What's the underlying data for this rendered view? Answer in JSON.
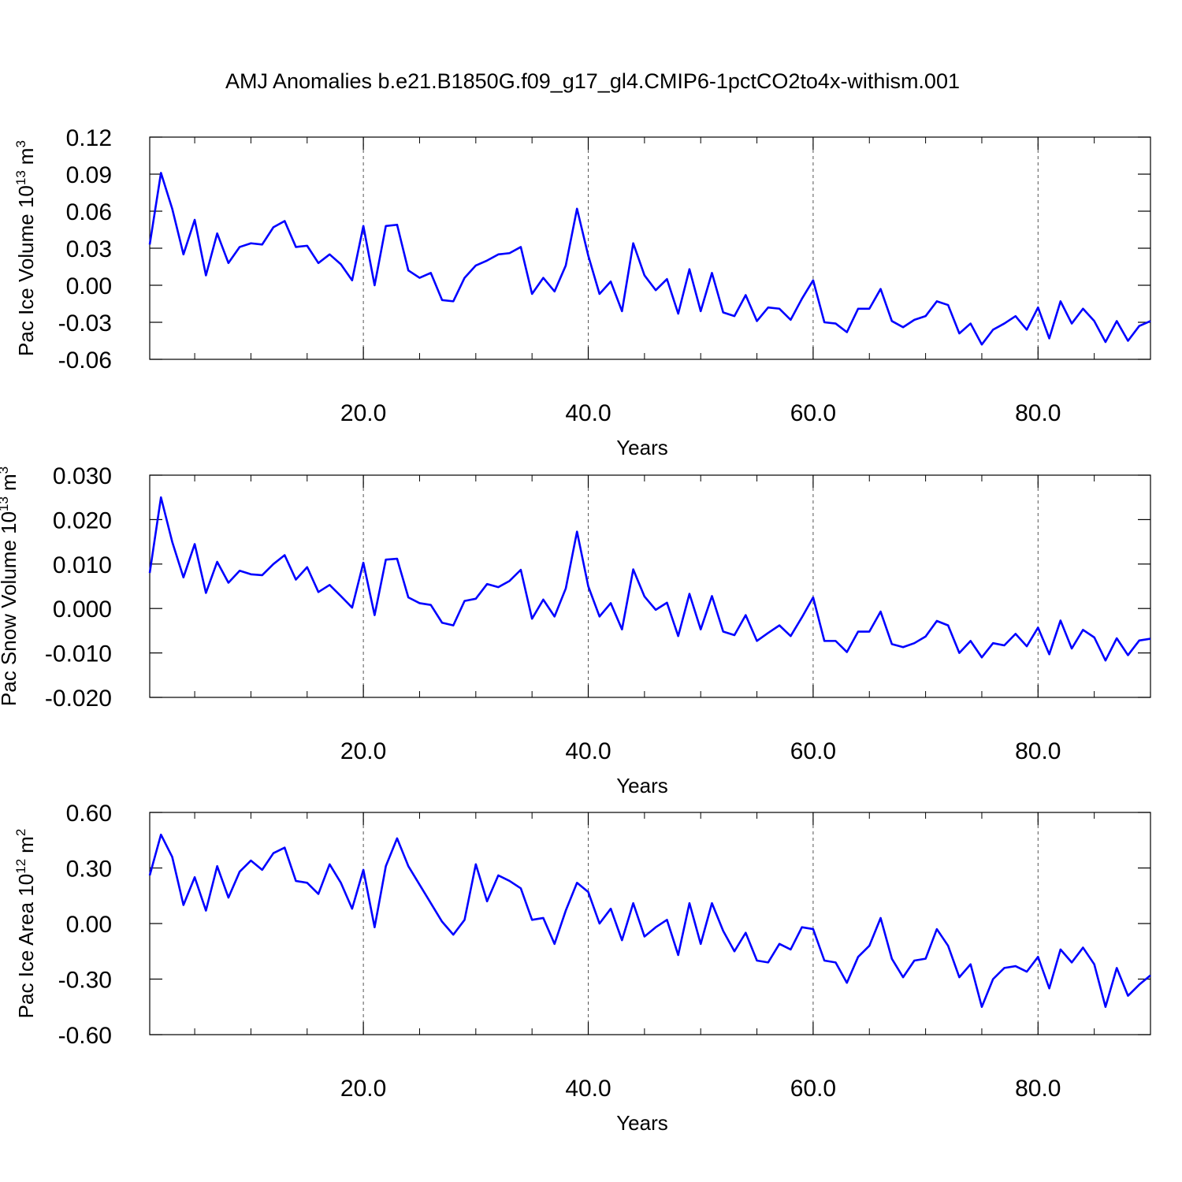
{
  "title": "AMJ Anomalies b.e21.B1850G.f09_g17_gl4.CMIP6-1pctCO2to4x-withism.001",
  "chart_data": [
    {
      "type": "line",
      "xlabel": "Years",
      "ylabel": {
        "text": "Pac Ice Volume 10",
        "exp": "13",
        "unit": "m",
        "unit_exp": "3"
      },
      "x": [
        1,
        2,
        3,
        4,
        5,
        6,
        7,
        8,
        9,
        10,
        11,
        12,
        13,
        14,
        15,
        16,
        17,
        18,
        19,
        20,
        21,
        22,
        23,
        24,
        25,
        26,
        27,
        28,
        29,
        30,
        31,
        32,
        33,
        34,
        35,
        36,
        37,
        38,
        39,
        40,
        41,
        42,
        43,
        44,
        45,
        46,
        47,
        48,
        49,
        50,
        51,
        52,
        53,
        54,
        55,
        56,
        57,
        58,
        59,
        60,
        61,
        62,
        63,
        64,
        65,
        66,
        67,
        68,
        69,
        70,
        71,
        72,
        73,
        74,
        75,
        76,
        77,
        78,
        79,
        80,
        81,
        82,
        83,
        84,
        85,
        86,
        87,
        88,
        89,
        90
      ],
      "series": [
        {
          "color": "#0000ff",
          "values": [
            0.033,
            0.091,
            0.062,
            0.025,
            0.053,
            0.008,
            0.042,
            0.018,
            0.031,
            0.034,
            0.033,
            0.047,
            0.052,
            0.031,
            0.032,
            0.018,
            0.025,
            0.017,
            0.004,
            0.048,
            0.0,
            0.048,
            0.049,
            0.012,
            0.006,
            0.01,
            -0.012,
            -0.013,
            0.006,
            0.016,
            0.02,
            0.025,
            0.026,
            0.031,
            -0.007,
            0.006,
            -0.005,
            0.016,
            0.062,
            0.024,
            -0.007,
            0.003,
            -0.021,
            0.034,
            0.008,
            -0.004,
            0.005,
            -0.023,
            0.013,
            -0.021,
            0.01,
            -0.022,
            -0.025,
            -0.008,
            -0.029,
            -0.018,
            -0.019,
            -0.028,
            -0.011,
            0.004,
            -0.03,
            -0.031,
            -0.038,
            -0.019,
            -0.019,
            -0.003,
            -0.029,
            -0.034,
            -0.028,
            -0.025,
            -0.013,
            -0.016,
            -0.039,
            -0.031,
            -0.048,
            -0.036,
            -0.031,
            -0.025,
            -0.036,
            -0.018,
            -0.043,
            -0.013,
            -0.031,
            -0.019,
            -0.029,
            -0.046,
            -0.029,
            -0.045,
            -0.033,
            -0.029
          ]
        }
      ],
      "xlim": [
        1,
        90
      ],
      "xticks": [
        {
          "value": 20,
          "label": "20.0"
        },
        {
          "value": 40,
          "label": "40.0"
        },
        {
          "value": 60,
          "label": "60.0"
        },
        {
          "value": 80,
          "label": "80.0"
        }
      ],
      "xminorticks": [
        5,
        10,
        15,
        25,
        30,
        35,
        45,
        50,
        55,
        65,
        70,
        75,
        85
      ],
      "ylim": [
        -0.06,
        0.12
      ],
      "yticks": [
        0.12,
        0.09,
        0.06,
        0.03,
        {
          "value": 0,
          "label": "0.00"
        },
        -0.03,
        -0.06
      ],
      "xgrid": true
    },
    {
      "type": "line",
      "xlabel": "Years",
      "ylabel": {
        "text": "Pac Snow Volume 10",
        "exp": "13",
        "unit": "m",
        "unit_exp": "3"
      },
      "x": [
        1,
        2,
        3,
        4,
        5,
        6,
        7,
        8,
        9,
        10,
        11,
        12,
        13,
        14,
        15,
        16,
        17,
        18,
        19,
        20,
        21,
        22,
        23,
        24,
        25,
        26,
        27,
        28,
        29,
        30,
        31,
        32,
        33,
        34,
        35,
        36,
        37,
        38,
        39,
        40,
        41,
        42,
        43,
        44,
        45,
        46,
        47,
        48,
        49,
        50,
        51,
        52,
        53,
        54,
        55,
        56,
        57,
        58,
        59,
        60,
        61,
        62,
        63,
        64,
        65,
        66,
        67,
        68,
        69,
        70,
        71,
        72,
        73,
        74,
        75,
        76,
        77,
        78,
        79,
        80,
        81,
        82,
        83,
        84,
        85,
        86,
        87,
        88,
        89,
        90
      ],
      "series": [
        {
          "color": "#0000ff",
          "values": [
            0.008,
            0.025,
            0.015,
            0.007,
            0.0145,
            0.0035,
            0.0105,
            0.0058,
            0.0085,
            0.0077,
            0.0075,
            0.01,
            0.012,
            0.0065,
            0.0093,
            0.0037,
            0.0053,
            0.0028,
            0.0002,
            0.0103,
            -0.0015,
            0.011,
            0.0112,
            0.0025,
            0.0012,
            0.0008,
            -0.0032,
            -0.0038,
            0.0017,
            0.0022,
            0.0055,
            0.0048,
            0.0062,
            0.0087,
            -0.0023,
            0.002,
            -0.0018,
            0.0045,
            0.0173,
            0.005,
            -0.0018,
            0.0012,
            -0.0047,
            0.0088,
            0.0027,
            -0.0003,
            0.0013,
            -0.0062,
            0.0033,
            -0.0047,
            0.0028,
            -0.0052,
            -0.006,
            -0.0015,
            -0.0073,
            -0.0055,
            -0.0038,
            -0.0062,
            -0.002,
            0.0025,
            -0.0073,
            -0.0073,
            -0.0098,
            -0.0052,
            -0.0052,
            -0.0007,
            -0.008,
            -0.0087,
            -0.0078,
            -0.0063,
            -0.0028,
            -0.0038,
            -0.01,
            -0.0073,
            -0.011,
            -0.0078,
            -0.0083,
            -0.0057,
            -0.0085,
            -0.0043,
            -0.0103,
            -0.0027,
            -0.009,
            -0.0048,
            -0.0065,
            -0.0117,
            -0.0067,
            -0.0105,
            -0.0072,
            -0.0068
          ]
        }
      ],
      "xlim": [
        1,
        90
      ],
      "xticks": [
        {
          "value": 20,
          "label": "20.0"
        },
        {
          "value": 40,
          "label": "40.0"
        },
        {
          "value": 60,
          "label": "60.0"
        },
        {
          "value": 80,
          "label": "80.0"
        }
      ],
      "xminorticks": [
        5,
        10,
        15,
        25,
        30,
        35,
        45,
        50,
        55,
        65,
        70,
        75,
        85
      ],
      "ylim": [
        -0.02,
        0.03
      ],
      "yticks": [
        {
          "value": 0.03,
          "label": "0.030"
        },
        {
          "value": 0.02,
          "label": "0.020"
        },
        {
          "value": 0.01,
          "label": "0.010"
        },
        {
          "value": 0,
          "label": "0.000"
        },
        {
          "value": -0.01,
          "label": "-0.010"
        },
        {
          "value": -0.02,
          "label": "-0.020"
        }
      ],
      "xgrid": true
    },
    {
      "type": "line",
      "xlabel": "Years",
      "ylabel": {
        "text": "Pac Ice Area 10",
        "exp": "12",
        "unit": "m",
        "unit_exp": "2"
      },
      "x": [
        1,
        2,
        3,
        4,
        5,
        6,
        7,
        8,
        9,
        10,
        11,
        12,
        13,
        14,
        15,
        16,
        17,
        18,
        19,
        20,
        21,
        22,
        23,
        24,
        25,
        26,
        27,
        28,
        29,
        30,
        31,
        32,
        33,
        34,
        35,
        36,
        37,
        38,
        39,
        40,
        41,
        42,
        43,
        44,
        45,
        46,
        47,
        48,
        49,
        50,
        51,
        52,
        53,
        54,
        55,
        56,
        57,
        58,
        59,
        60,
        61,
        62,
        63,
        64,
        65,
        66,
        67,
        68,
        69,
        70,
        71,
        72,
        73,
        74,
        75,
        76,
        77,
        78,
        79,
        80,
        81,
        82,
        83,
        84,
        85,
        86,
        87,
        88,
        89,
        90
      ],
      "series": [
        {
          "color": "#0000ff",
          "values": [
            0.26,
            0.48,
            0.36,
            0.1,
            0.25,
            0.07,
            0.31,
            0.14,
            0.28,
            0.34,
            0.29,
            0.38,
            0.41,
            0.23,
            0.22,
            0.16,
            0.32,
            0.22,
            0.08,
            0.29,
            -0.02,
            0.31,
            0.46,
            0.31,
            0.21,
            0.11,
            0.01,
            -0.06,
            0.02,
            0.32,
            0.12,
            0.26,
            0.23,
            0.19,
            0.02,
            0.03,
            -0.11,
            0.07,
            0.22,
            0.17,
            0.0,
            0.08,
            -0.09,
            0.11,
            -0.07,
            -0.02,
            0.02,
            -0.17,
            0.11,
            -0.11,
            0.11,
            -0.04,
            -0.15,
            -0.05,
            -0.2,
            -0.21,
            -0.11,
            -0.14,
            -0.02,
            -0.03,
            -0.2,
            -0.21,
            -0.32,
            -0.18,
            -0.12,
            0.03,
            -0.19,
            -0.29,
            -0.2,
            -0.19,
            -0.03,
            -0.12,
            -0.29,
            -0.22,
            -0.45,
            -0.3,
            -0.24,
            -0.23,
            -0.26,
            -0.18,
            -0.35,
            -0.14,
            -0.21,
            -0.13,
            -0.22,
            -0.45,
            -0.24,
            -0.39,
            -0.33,
            -0.28
          ]
        }
      ],
      "xlim": [
        1,
        90
      ],
      "xticks": [
        {
          "value": 20,
          "label": "20.0"
        },
        {
          "value": 40,
          "label": "40.0"
        },
        {
          "value": 60,
          "label": "60.0"
        },
        {
          "value": 80,
          "label": "80.0"
        }
      ],
      "xminorticks": [
        5,
        10,
        15,
        25,
        30,
        35,
        45,
        50,
        55,
        65,
        70,
        75,
        85
      ],
      "ylim": [
        -0.6,
        0.6
      ],
      "yticks": [
        {
          "value": 0.6,
          "label": "0.60"
        },
        {
          "value": 0.3,
          "label": "0.30"
        },
        {
          "value": 0,
          "label": "0.00"
        },
        {
          "value": -0.3,
          "label": "-0.30"
        },
        {
          "value": -0.6,
          "label": "-0.60"
        }
      ],
      "xgrid": true
    }
  ]
}
